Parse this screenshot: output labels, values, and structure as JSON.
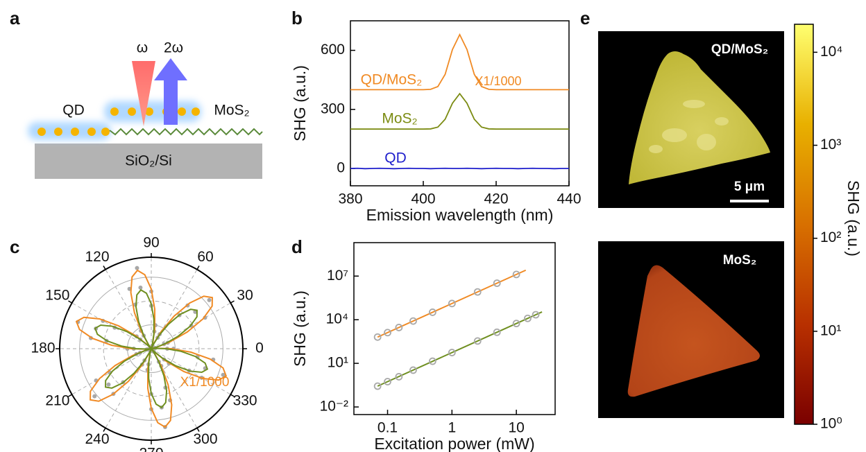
{
  "panel_labels": [
    "a",
    "b",
    "c",
    "d",
    "e"
  ],
  "schematic": {
    "pump": "ω",
    "shg": "2ω",
    "qd": "QD",
    "mos2": "MoS₂",
    "substrate": "SiO₂/Si"
  },
  "images": [
    {
      "label": "QD/MoS₂",
      "scale_bar": "5 μm"
    },
    {
      "label": "MoS₂"
    }
  ],
  "chart_data": [
    {
      "type": "line",
      "xlabel": "Emission wavelength (nm)",
      "ylabel": "SHG (a.u.)",
      "annotation": "X1/1000",
      "x": [
        380,
        382,
        384,
        386,
        388,
        390,
        392,
        394,
        396,
        398,
        400,
        402,
        404,
        406,
        408,
        410,
        412,
        414,
        416,
        418,
        420,
        422,
        424,
        426,
        428,
        430,
        432,
        434,
        436,
        438,
        440
      ],
      "series": [
        {
          "name": "QD/MoS₂",
          "color": "#f08a24",
          "values": [
            400,
            400,
            400,
            400,
            400,
            400,
            400,
            400,
            400,
            400,
            400,
            402,
            416,
            478,
            604,
            680,
            604,
            478,
            416,
            402,
            400,
            400,
            400,
            400,
            400,
            400,
            400,
            400,
            400,
            400,
            400
          ]
        },
        {
          "name": "MoS₂",
          "color": "#7b8b12",
          "values": [
            200,
            200,
            200,
            200,
            200,
            200,
            200,
            200,
            200,
            200,
            200,
            201,
            210,
            250,
            331,
            380,
            331,
            250,
            210,
            201,
            200,
            200,
            200,
            200,
            200,
            200,
            200,
            200,
            200,
            200,
            200
          ]
        },
        {
          "name": "QD",
          "color": "#1f1fcc",
          "values": [
            0,
            1,
            -1,
            0,
            1,
            0,
            -1,
            0,
            1,
            0,
            0,
            -1,
            0,
            1,
            0,
            0,
            1,
            0,
            -1,
            0,
            1,
            0,
            0,
            -1,
            0,
            1,
            0,
            0,
            -1,
            0,
            0
          ]
        }
      ],
      "xlim": [
        380,
        440
      ],
      "xticks": [
        380,
        400,
        420,
        440
      ],
      "ylim": [
        -88,
        750
      ],
      "yticks": [
        0,
        300,
        600
      ]
    },
    {
      "type": "polar",
      "annotation": "X1/1000",
      "rlim": [
        0,
        1.15
      ],
      "rgrid": [
        0.3,
        0.6,
        0.9
      ],
      "thetaticks": [
        0,
        30,
        60,
        90,
        120,
        150,
        180,
        210,
        240,
        270,
        300,
        330
      ],
      "series": [
        {
          "mode": "points",
          "color": "#a8a8a8",
          "theta": [
            0,
            10,
            20,
            30,
            40,
            50,
            60,
            70,
            80,
            90,
            100,
            110,
            120,
            130,
            140,
            150,
            160,
            170,
            180,
            190,
            200,
            210,
            220,
            230,
            240,
            250,
            260,
            270,
            280,
            290,
            300,
            310,
            320,
            330,
            340,
            350
          ],
          "values": [
            0.28,
            0.05,
            0.22,
            0.78,
            0.95,
            0.71,
            0.21,
            0.04,
            0.3,
            0.72,
            1.03,
            0.8,
            0.26,
            0.02,
            0.24,
            0.7,
            0.98,
            0.77,
            0.3,
            0.06,
            0.2,
            0.8,
            0.93,
            0.74,
            0.23,
            0.03,
            0.27,
            0.76,
            1.0,
            0.69,
            0.25,
            0.05,
            0.29,
            0.73,
            0.96,
            0.79
          ]
        },
        {
          "mode": "points",
          "color": "#a8a8a8",
          "theta": [
            0,
            10,
            20,
            30,
            40,
            50,
            60,
            70,
            80,
            90,
            100,
            110,
            120,
            130,
            140,
            150,
            160,
            170,
            180,
            190,
            200,
            210,
            220,
            230,
            240,
            250,
            260,
            270,
            280,
            290,
            300,
            310,
            320,
            330,
            340,
            350
          ],
          "values": [
            0.2,
            0.03,
            0.17,
            0.58,
            0.72,
            0.55,
            0.16,
            0.04,
            0.22,
            0.54,
            0.78,
            0.59,
            0.19,
            0.02,
            0.18,
            0.53,
            0.74,
            0.57,
            0.22,
            0.05,
            0.15,
            0.6,
            0.7,
            0.55,
            0.17,
            0.03,
            0.2,
            0.57,
            0.75,
            0.52,
            0.19,
            0.04,
            0.21,
            0.55,
            0.72,
            0.59
          ]
        },
        {
          "mode": "line",
          "color": "#f08a24",
          "theta": [
            0,
            5,
            10,
            15,
            20,
            25,
            30,
            35,
            40,
            45,
            50,
            55,
            60,
            65,
            70,
            75,
            80,
            85,
            90,
            95,
            100,
            105,
            110,
            115,
            120,
            125,
            130,
            135,
            140,
            145,
            150,
            155,
            160,
            165,
            170,
            175,
            180,
            185,
            190,
            195,
            200,
            205,
            210,
            215,
            220,
            225,
            230,
            235,
            240,
            245,
            250,
            255,
            260,
            265,
            270,
            275,
            280,
            285,
            290,
            295,
            300,
            305,
            310,
            315,
            320,
            325,
            330,
            335,
            340,
            345,
            350,
            355
          ],
          "values": [
            0.25,
            0.067,
            0,
            0.067,
            0.25,
            0.5,
            0.75,
            0.933,
            1,
            0.933,
            0.75,
            0.5,
            0.25,
            0.067,
            0,
            0.067,
            0.25,
            0.5,
            0.75,
            0.933,
            1,
            0.933,
            0.75,
            0.5,
            0.25,
            0.067,
            0,
            0.067,
            0.25,
            0.5,
            0.75,
            0.933,
            1,
            0.933,
            0.75,
            0.5,
            0.25,
            0.067,
            0,
            0.067,
            0.25,
            0.5,
            0.75,
            0.933,
            1,
            0.933,
            0.75,
            0.5,
            0.25,
            0.067,
            0,
            0.067,
            0.25,
            0.5,
            0.75,
            0.933,
            1,
            0.933,
            0.75,
            0.5,
            0.25,
            0.067,
            0,
            0.067,
            0.25,
            0.5,
            0.75,
            0.933,
            1,
            0.933,
            0.75,
            0.5
          ]
        },
        {
          "mode": "line",
          "color": "#6f8f20",
          "theta": [
            0,
            5,
            10,
            15,
            20,
            25,
            30,
            35,
            40,
            45,
            50,
            55,
            60,
            65,
            70,
            75,
            80,
            85,
            90,
            95,
            100,
            105,
            110,
            115,
            120,
            125,
            130,
            135,
            140,
            145,
            150,
            155,
            160,
            165,
            170,
            175,
            180,
            185,
            190,
            195,
            200,
            205,
            210,
            215,
            220,
            225,
            230,
            235,
            240,
            245,
            250,
            255,
            260,
            265,
            270,
            275,
            280,
            285,
            290,
            295,
            300,
            305,
            310,
            315,
            320,
            325,
            330,
            335,
            340,
            345,
            350,
            355
          ],
          "values": [
            0.188,
            0.05,
            0,
            0.05,
            0.188,
            0.375,
            0.563,
            0.7,
            0.75,
            0.7,
            0.563,
            0.375,
            0.188,
            0.05,
            0,
            0.05,
            0.188,
            0.375,
            0.563,
            0.7,
            0.75,
            0.7,
            0.563,
            0.375,
            0.188,
            0.05,
            0,
            0.05,
            0.188,
            0.375,
            0.563,
            0.7,
            0.75,
            0.7,
            0.563,
            0.375,
            0.188,
            0.05,
            0,
            0.05,
            0.188,
            0.375,
            0.563,
            0.7,
            0.75,
            0.7,
            0.563,
            0.375,
            0.188,
            0.05,
            0,
            0.05,
            0.188,
            0.375,
            0.563,
            0.7,
            0.75,
            0.7,
            0.563,
            0.375,
            0.188,
            0.05,
            0,
            0.05,
            0.188,
            0.375,
            0.563,
            0.7,
            0.75,
            0.7,
            0.563,
            0.375
          ]
        }
      ]
    },
    {
      "type": "loglog",
      "xlabel": "Excitation power (mW)",
      "ylabel": "SHG (a.u.)",
      "xlim": [
        0.03,
        40
      ],
      "xticks": [
        0.1,
        1,
        10
      ],
      "ylim": [
        0.003,
        2000000000
      ],
      "yticks": [
        {
          "value": 0.01,
          "label": "10⁻²"
        },
        {
          "value": 10,
          "label": "10¹"
        },
        {
          "value": 10000,
          "label": "10⁴"
        },
        {
          "value": 10000000,
          "label": "10⁷"
        }
      ],
      "series": [
        {
          "mode": "line",
          "color": "#f08a24",
          "x": [
            0.07,
            14
          ],
          "values": [
            637,
            25480000
          ]
        },
        {
          "mode": "line",
          "color": "#6f8f20",
          "x": [
            0.07,
            25
          ],
          "values": [
            0.27,
            34375
          ]
        },
        {
          "mode": "points",
          "color": "#a8a8a8",
          "x": [
            0.07,
            0.1,
            0.15,
            0.25,
            0.5,
            1,
            2.5,
            5,
            10
          ],
          "values": [
            640,
            1300,
            2900,
            8100,
            32500,
            130000,
            812500,
            3250000,
            13000000
          ]
        },
        {
          "mode": "points",
          "color": "#a8a8a8",
          "x": [
            0.07,
            0.1,
            0.15,
            0.25,
            0.5,
            1,
            2.5,
            5,
            10,
            15,
            20
          ],
          "values": [
            0.27,
            0.55,
            1.2,
            3.4,
            14,
            55,
            344,
            1375,
            5500,
            12375,
            22000
          ]
        }
      ]
    },
    {
      "type": "colorbar",
      "ylabel": "SHG (a.u.)",
      "log": true,
      "ylim": [
        1,
        20000
      ],
      "colors": [
        "#7a0000",
        "#b83000",
        "#d87000",
        "#e8b000",
        "#ffff70"
      ],
      "yticks": [
        {
          "value": 1,
          "label": "10⁰"
        },
        {
          "value": 10,
          "label": "10¹"
        },
        {
          "value": 100,
          "label": "10²"
        },
        {
          "value": 1000,
          "label": "10³"
        },
        {
          "value": 10000,
          "label": "10⁴"
        }
      ]
    }
  ]
}
